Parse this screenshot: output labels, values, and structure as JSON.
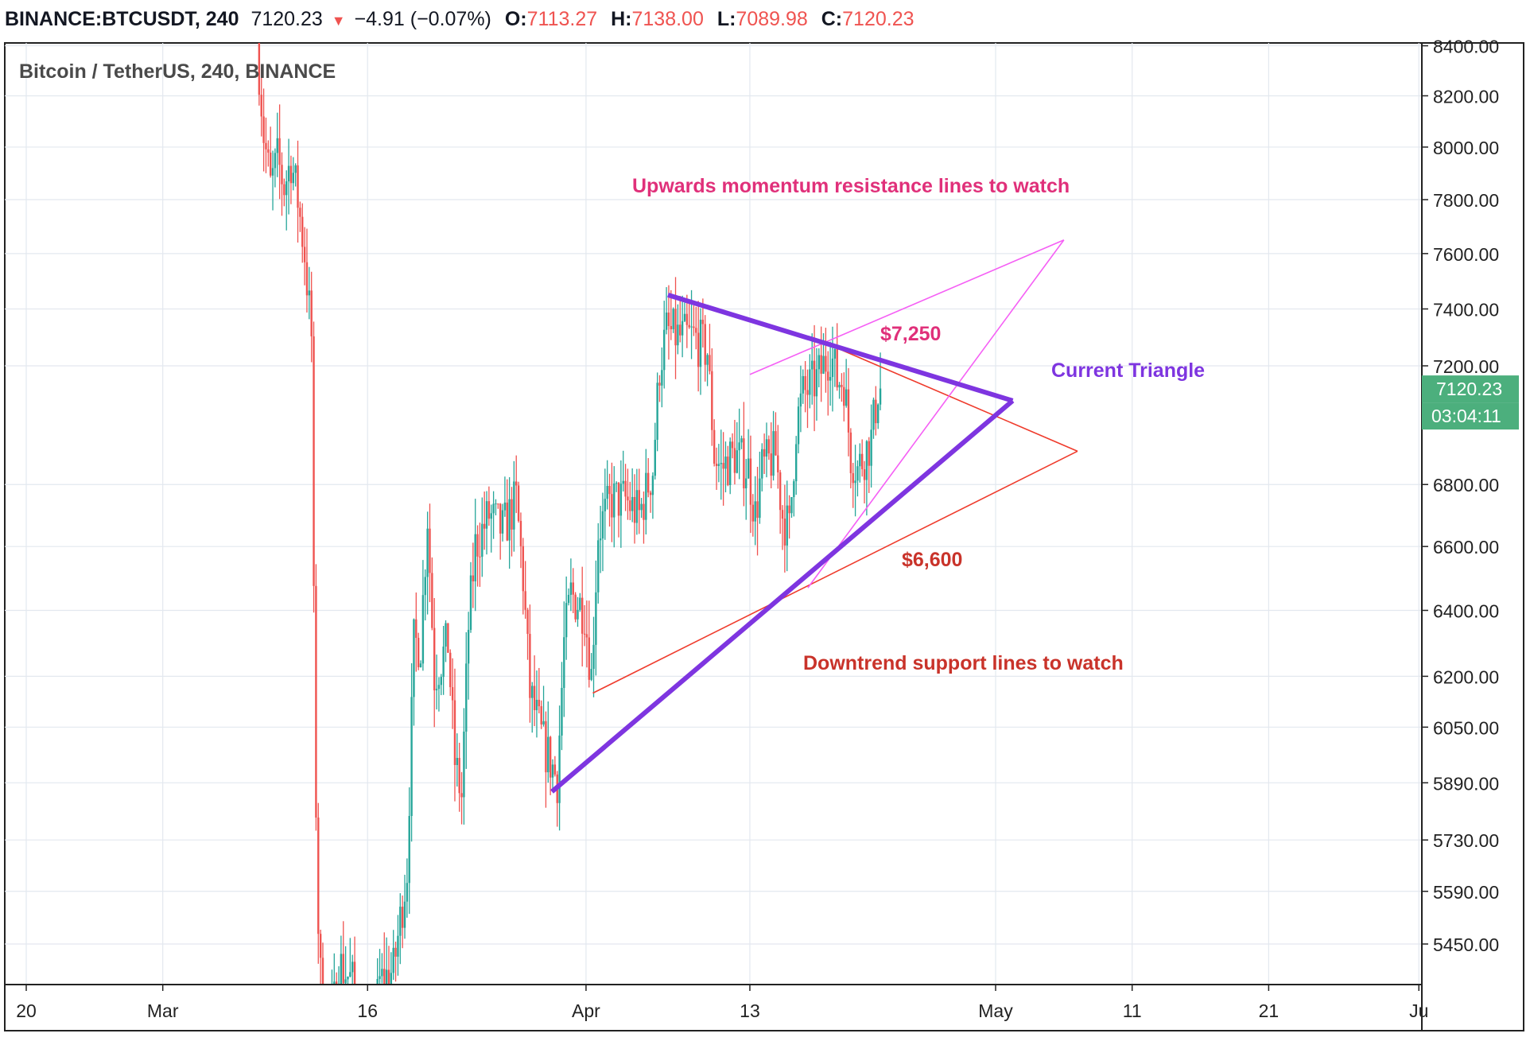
{
  "header": {
    "symbol": "BINANCE:BTCUSDT, 240",
    "price": "7120.23",
    "change": "−4.91 (−0.07%)",
    "o_label": "O:",
    "o_value": "7113.27",
    "h_label": "H:",
    "h_value": "7138.00",
    "l_label": "L:",
    "l_value": "7089.98",
    "c_label": "C:",
    "c_value": "7120.23",
    "arrow": "down-triangle-icon"
  },
  "chart_data": {
    "type": "candlestick",
    "title": "Bitcoin / TetherUS, 240, BINANCE",
    "price_scale": "log",
    "ylim": [
      5360,
      8440
    ],
    "yticks": [
      "8400.00",
      "8200.00",
      "8000.00",
      "7800.00",
      "7600.00",
      "7400.00",
      "7200.00",
      "6800.00",
      "6600.00",
      "6400.00",
      "6200.00",
      "6050.00",
      "5890.00",
      "5730.00",
      "5590.00",
      "5450.00"
    ],
    "xticks": [
      {
        "label": "20",
        "date": "2020-02-20"
      },
      {
        "label": "Mar",
        "date": "2020-03-01"
      },
      {
        "label": "16",
        "date": "2020-03-16"
      },
      {
        "label": "Apr",
        "date": "2020-04-01"
      },
      {
        "label": "13",
        "date": "2020-04-13"
      },
      {
        "label": "May",
        "date": "2020-05-01"
      },
      {
        "label": "11",
        "date": "2020-05-11"
      },
      {
        "label": "21",
        "date": "2020-05-21"
      },
      {
        "label": "Ju",
        "date": "2020-06-01"
      }
    ],
    "last_price": {
      "label": "7120.23",
      "value": 7120.23,
      "countdown": "03:04:11",
      "color": "#4caf7d"
    },
    "up_color": "#26a69a",
    "down_color": "#ef5350",
    "price_path": [
      [
        "2020-03-08T00:00",
        8440
      ],
      [
        "2020-03-08T12:00",
        8050
      ],
      [
        "2020-03-09T00:00",
        7850
      ],
      [
        "2020-03-09T12:00",
        7950
      ],
      [
        "2020-03-10T00:00",
        7850
      ],
      [
        "2020-03-10T12:00",
        7950
      ],
      [
        "2020-03-11T00:00",
        7800
      ],
      [
        "2020-03-11T12:00",
        7600
      ],
      [
        "2020-03-12T00:00",
        7300
      ],
      [
        "2020-03-12T06:00",
        6000
      ],
      [
        "2020-03-12T12:00",
        5500
      ],
      [
        "2020-03-13T00:00",
        5100
      ],
      [
        "2020-03-14T00:00",
        5400
      ],
      [
        "2020-03-15T00:00",
        5350
      ],
      [
        "2020-03-16T00:00",
        5100
      ],
      [
        "2020-03-17T00:00",
        5350
      ],
      [
        "2020-03-18T00:00",
        5380
      ],
      [
        "2020-03-19T00:00",
        5650
      ],
      [
        "2020-03-19T12:00",
        6300
      ],
      [
        "2020-03-20T00:00",
        6300
      ],
      [
        "2020-03-20T12:00",
        6700
      ],
      [
        "2020-03-21T00:00",
        6200
      ],
      [
        "2020-03-22T00:00",
        6300
      ],
      [
        "2020-03-22T12:00",
        5950
      ],
      [
        "2020-03-23T00:00",
        5850
      ],
      [
        "2020-03-23T12:00",
        6350
      ],
      [
        "2020-03-24T00:00",
        6600
      ],
      [
        "2020-03-25T00:00",
        6700
      ],
      [
        "2020-03-26T00:00",
        6650
      ],
      [
        "2020-03-27T00:00",
        6750
      ],
      [
        "2020-03-27T12:00",
        6500
      ],
      [
        "2020-03-28T00:00",
        6150
      ],
      [
        "2020-03-29T00:00",
        6000
      ],
      [
        "2020-03-30T00:00",
        5900
      ],
      [
        "2020-03-30T12:00",
        6300
      ],
      [
        "2020-03-31T00:00",
        6450
      ],
      [
        "2020-04-01T00:00",
        6400
      ],
      [
        "2020-04-01T12:00",
        6200
      ],
      [
        "2020-04-02T00:00",
        6650
      ],
      [
        "2020-04-03T00:00",
        6750
      ],
      [
        "2020-04-04T00:00",
        6750
      ],
      [
        "2020-04-05T00:00",
        6700
      ],
      [
        "2020-04-06T00:00",
        6850
      ],
      [
        "2020-04-06T12:00",
        7200
      ],
      [
        "2020-04-07T00:00",
        7320
      ],
      [
        "2020-04-08T00:00",
        7300
      ],
      [
        "2020-04-09T00:00",
        7300
      ],
      [
        "2020-04-10T00:00",
        7250
      ],
      [
        "2020-04-10T12:00",
        6900
      ],
      [
        "2020-04-11T00:00",
        6850
      ],
      [
        "2020-04-12T00:00",
        6900
      ],
      [
        "2020-04-13T00:00",
        6850
      ],
      [
        "2020-04-13T12:00",
        6700
      ],
      [
        "2020-04-14T00:00",
        6850
      ],
      [
        "2020-04-15T00:00",
        6900
      ],
      [
        "2020-04-15T12:00",
        6700
      ],
      [
        "2020-04-16T00:00",
        6650
      ],
      [
        "2020-04-16T12:00",
        7000
      ],
      [
        "2020-04-17T00:00",
        7100
      ],
      [
        "2020-04-18T00:00",
        7150
      ],
      [
        "2020-04-19T00:00",
        7250
      ],
      [
        "2020-04-19T12:00",
        7150
      ],
      [
        "2020-04-20T00:00",
        7150
      ],
      [
        "2020-04-20T12:00",
        6900
      ],
      [
        "2020-04-21T00:00",
        6850
      ],
      [
        "2020-04-22T00:00",
        6950
      ],
      [
        "2020-04-22T12:00",
        7120
      ]
    ]
  },
  "drawings": {
    "current_triangle": {
      "label": "Current Triangle",
      "color": "#7e35e0",
      "upper": [
        [
          "2020-04-07T00:00",
          7450
        ],
        [
          "2020-05-02T06:00",
          7080
        ]
      ],
      "lower": [
        [
          "2020-03-29T12:00",
          5865
        ],
        [
          "2020-05-02T06:00",
          7080
        ]
      ]
    },
    "resistance": {
      "label": "Upwards momentum resistance lines to watch",
      "value_label": "$7,250",
      "color": "#f55ff5",
      "top_line": [
        [
          "2020-04-13T00:00",
          7170
        ],
        [
          "2020-05-06T00:00",
          7650
        ]
      ],
      "steep_line": [
        [
          "2020-04-17T06:00",
          6470
        ],
        [
          "2020-05-06T00:00",
          7650
        ]
      ]
    },
    "support": {
      "label": "Downtrend support lines to watch",
      "value_label": "$6,600",
      "color": "#ef3b2c",
      "upper_line": [
        [
          "2020-04-18T12:00",
          7280
        ],
        [
          "2020-05-07T00:00",
          6910
        ]
      ],
      "lower_line": [
        [
          "2020-04-01T12:00",
          6150
        ],
        [
          "2020-05-07T00:00",
          6910
        ]
      ]
    },
    "label_colors": {
      "resistance": "#e0307a",
      "support": "#c9332a",
      "triangle": "#7e35e0"
    }
  }
}
